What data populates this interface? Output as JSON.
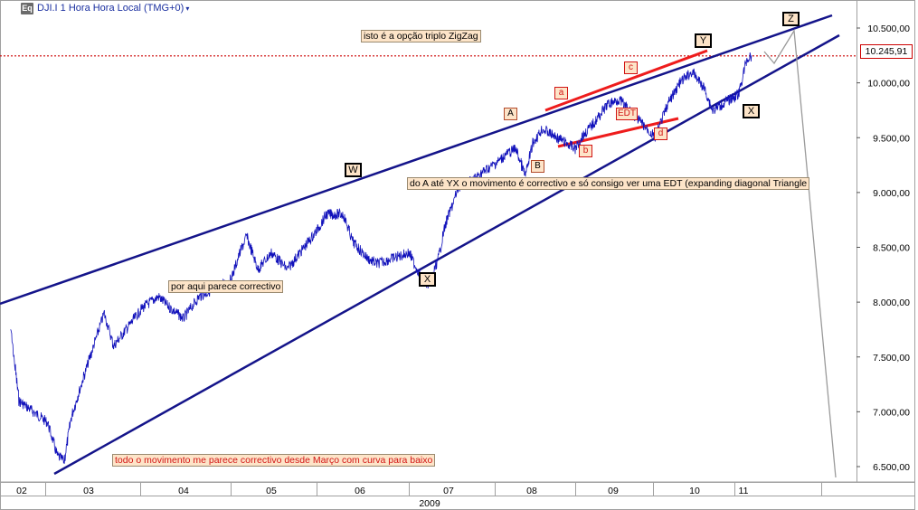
{
  "window": {
    "eq_label": "Eq",
    "title": "DJI.I 1 Hora Hora Local (TMG+0)",
    "dropdown_glyph": "▾"
  },
  "colors": {
    "price_line": "#1111bb",
    "channel_line": "#14148a",
    "edt_line": "#ee1c1c",
    "marker_line": "#cc0000",
    "note_bg": "#fde4c8",
    "grid_border": "#a0a0a0"
  },
  "annotations": {
    "zigzag": "isto é a opção  triplo ZigZag",
    "corrective": "por aqui parece correctivo",
    "edt": "do A até YX o movimento é correctivo e só consigo ver uma EDT (expanding diagonal Triangle",
    "march": "todo o movimento me parece correctivo desde Março com curva para baixo"
  },
  "wave_labels": {
    "W": "W",
    "X1": "X",
    "A": "A",
    "B": "B",
    "a": "a",
    "b": "b",
    "c": "c",
    "d": "d",
    "EDT": "EDT",
    "Y": "Y",
    "X2": "X",
    "Z": "Z"
  },
  "last_price": "10.245,91",
  "chart_data": {
    "type": "line",
    "series": [
      {
        "values": [
          {
            "x": "02-15",
            "y": 7750
          },
          {
            "x": "02-20",
            "y": 7450
          },
          {
            "x": "02-26",
            "y": 7100
          },
          {
            "x": "03-02",
            "y": 6900
          },
          {
            "x": "03-06",
            "y": 6600
          },
          {
            "x": "03-09",
            "y": 6550
          },
          {
            "x": "03-12",
            "y": 6950
          },
          {
            "x": "03-17",
            "y": 7300
          },
          {
            "x": "03-23",
            "y": 7700
          },
          {
            "x": "03-26",
            "y": 7900
          },
          {
            "x": "03-30",
            "y": 7600
          },
          {
            "x": "04-02",
            "y": 7950
          },
          {
            "x": "04-09",
            "y": 8050
          },
          {
            "x": "04-14",
            "y": 7950
          },
          {
            "x": "04-20",
            "y": 7850
          },
          {
            "x": "04-27",
            "y": 8050
          },
          {
            "x": "05-01",
            "y": 8200
          },
          {
            "x": "05-05",
            "y": 8450
          },
          {
            "x": "05-08",
            "y": 8600
          },
          {
            "x": "05-13",
            "y": 8300
          },
          {
            "x": "05-19",
            "y": 8450
          },
          {
            "x": "05-26",
            "y": 8300
          },
          {
            "x": "06-01",
            "y": 8650
          },
          {
            "x": "06-05",
            "y": 8800
          },
          {
            "x": "06-12",
            "y": 8800
          },
          {
            "x": "06-16",
            "y": 8550
          },
          {
            "x": "06-22",
            "y": 8400
          },
          {
            "x": "06-26",
            "y": 8350
          },
          {
            "x": "07-01",
            "y": 8450
          },
          {
            "x": "07-07",
            "y": 8200
          },
          {
            "x": "07-10",
            "y": 8150
          },
          {
            "x": "07-14",
            "y": 8400
          },
          {
            "x": "07-17",
            "y": 8700
          },
          {
            "x": "07-23",
            "y": 9050
          },
          {
            "x": "07-28",
            "y": 9100
          },
          {
            "x": "08-04",
            "y": 9300
          },
          {
            "x": "08-07",
            "y": 9350
          },
          {
            "x": "08-12",
            "y": 9400
          },
          {
            "x": "08-17",
            "y": 9150
          },
          {
            "x": "08-21",
            "y": 9450
          },
          {
            "x": "08-26",
            "y": 9580
          },
          {
            "x": "09-01",
            "y": 9400
          },
          {
            "x": "09-04",
            "y": 9500
          },
          {
            "x": "09-11",
            "y": 9650
          },
          {
            "x": "09-17",
            "y": 9800
          },
          {
            "x": "09-23",
            "y": 9850
          },
          {
            "x": "09-28",
            "y": 9750
          },
          {
            "x": "10-02",
            "y": 9500
          },
          {
            "x": "10-08",
            "y": 9800
          },
          {
            "x": "10-14",
            "y": 10000
          },
          {
            "x": "10-20",
            "y": 10100
          },
          {
            "x": "10-26",
            "y": 9950
          },
          {
            "x": "10-30",
            "y": 9750
          },
          {
            "x": "11-04",
            "y": 9900
          },
          {
            "x": "11-09",
            "y": 10200
          },
          {
            "x": "11-13",
            "y": 10250
          }
        ]
      }
    ],
    "x_ticks": [
      "02",
      "03",
      "04",
      "05",
      "06",
      "07",
      "08",
      "09",
      "10",
      "11",
      ""
    ],
    "year_label": "2009",
    "y_ticks": [
      "10.500,00",
      "10.000,00",
      "9.500,00",
      "9.000,00",
      "8.500,00",
      "8.000,00",
      "7.500,00",
      "7.000,00",
      "6.500,00"
    ],
    "y_tick_values": [
      10500,
      10000,
      9500,
      9000,
      8500,
      8000,
      7500,
      7000,
      6500
    ],
    "ylim": [
      6350,
      10750
    ],
    "xlim": [
      "02-09",
      "12-09"
    ],
    "grid": false,
    "reference_level": 10245.91
  }
}
